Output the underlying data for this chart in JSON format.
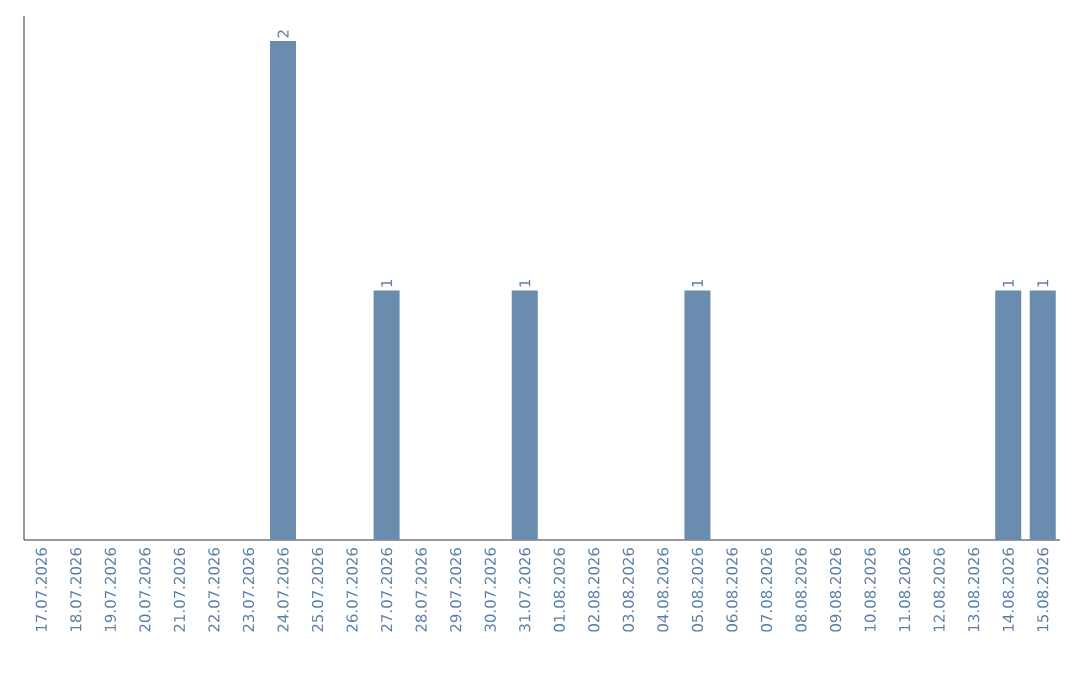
{
  "chart_data": {
    "type": "bar",
    "categories": [
      "17.07.2026",
      "18.07.2026",
      "19.07.2026",
      "20.07.2026",
      "21.07.2026",
      "22.07.2026",
      "23.07.2026",
      "24.07.2026",
      "25.07.2026",
      "26.07.2026",
      "27.07.2026",
      "28.07.2026",
      "29.07.2026",
      "30.07.2026",
      "31.07.2026",
      "01.08.2026",
      "02.08.2026",
      "03.08.2026",
      "04.08.2026",
      "05.08.2026",
      "06.08.2026",
      "07.08.2026",
      "08.08.2026",
      "09.08.2026",
      "10.08.2026",
      "11.08.2026",
      "12.08.2026",
      "13.08.2026",
      "14.08.2026",
      "15.08.2026"
    ],
    "values": [
      0,
      0,
      0,
      0,
      0,
      0,
      0,
      2,
      0,
      0,
      1,
      0,
      0,
      0,
      1,
      0,
      0,
      0,
      0,
      1,
      0,
      0,
      0,
      0,
      0,
      0,
      0,
      0,
      1,
      1
    ],
    "value_labels": [
      null,
      null,
      null,
      null,
      null,
      null,
      null,
      "2",
      null,
      null,
      "1",
      null,
      null,
      null,
      "1",
      null,
      null,
      null,
      null,
      "1",
      null,
      null,
      null,
      null,
      null,
      null,
      null,
      null,
      "1",
      "1"
    ],
    "color": "#6a8caf",
    "tick_labels": "x"
  }
}
